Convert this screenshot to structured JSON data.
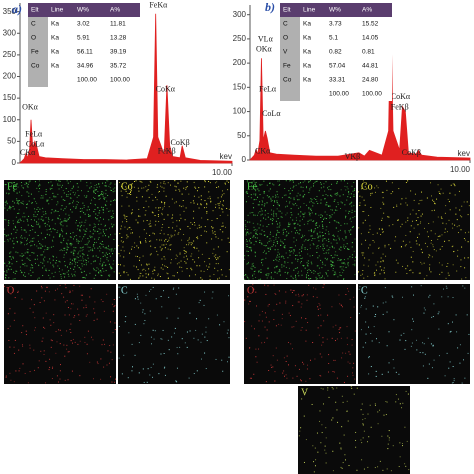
{
  "chart_data": [
    {
      "type": "line",
      "title": "a)",
      "x_label": "kev",
      "xlim": [
        0,
        10
      ],
      "ylim": [
        0,
        370
      ],
      "yticks": [
        0,
        50,
        100,
        150,
        200,
        250,
        300,
        350
      ],
      "xticks": [
        {
          "value": 10,
          "label": "10.00"
        }
      ],
      "series": [
        {
          "color": "#e02020",
          "x": [
            0,
            0.2,
            0.28,
            0.35,
            0.45,
            0.52,
            0.6,
            0.7,
            0.78,
            0.9,
            1.2,
            2,
            3,
            4,
            5,
            6,
            6.3,
            6.4,
            6.5,
            6.8,
            6.93,
            7.06,
            7.2,
            7.55,
            7.65,
            7.8,
            8.5,
            10
          ],
          "values": [
            0,
            10,
            22,
            12,
            30,
            100,
            35,
            50,
            40,
            15,
            12,
            10,
            8,
            8,
            7,
            10,
            60,
            345,
            60,
            20,
            180,
            40,
            15,
            12,
            40,
            12,
            6,
            4
          ]
        }
      ],
      "annotations": [
        {
          "text": "FeKα",
          "x": 6.1,
          "y": 364
        },
        {
          "text": "CoKα",
          "x": 6.4,
          "y": 169
        },
        {
          "text": "CoKβ",
          "x": 7.1,
          "y": 46
        },
        {
          "text": "FeKβ",
          "x": 6.5,
          "y": 26
        },
        {
          "text": "OKα",
          "x": 0.1,
          "y": 128
        },
        {
          "text": "FeLα",
          "x": 0.24,
          "y": 65
        },
        {
          "text": "CoLα",
          "x": 0.28,
          "y": 42
        },
        {
          "text": "CKα",
          "x": 0,
          "y": 23
        }
      ]
    },
    {
      "type": "line",
      "title": "b)",
      "x_label": "kev",
      "xlim": [
        0,
        10
      ],
      "ylim": [
        0,
        320
      ],
      "yticks": [
        0,
        50,
        100,
        150,
        200,
        250,
        300
      ],
      "xticks": [
        {
          "value": 10,
          "label": "10.00"
        }
      ],
      "series": [
        {
          "color": "#e02020",
          "x": [
            0,
            0.2,
            0.28,
            0.35,
            0.45,
            0.52,
            0.6,
            0.7,
            0.78,
            0.9,
            1.2,
            2,
            3,
            4,
            4.95,
            5.2,
            5.43,
            6,
            6.3,
            6.4,
            6.5,
            6.8,
            6.93,
            7.06,
            7.2,
            7.55,
            7.65,
            7.8,
            8.5,
            10
          ],
          "values": [
            0,
            10,
            22,
            12,
            40,
            210,
            40,
            60,
            45,
            15,
            12,
            10,
            8,
            8,
            15,
            8,
            20,
            10,
            60,
            310,
            60,
            20,
            110,
            100,
            15,
            12,
            20,
            10,
            6,
            4
          ]
        }
      ],
      "annotations": [
        {
          "text": "CKα",
          "x": 0.23,
          "y": 17
        },
        {
          "text": "VLα",
          "x": 0.36,
          "y": 248
        },
        {
          "text": "OKα",
          "x": 0.27,
          "y": 228
        },
        {
          "text": "FeLα",
          "x": 0.41,
          "y": 145
        },
        {
          "text": "CoLα",
          "x": 0.55,
          "y": 95
        },
        {
          "text": "VKβ",
          "x": 4.3,
          "y": 6
        },
        {
          "text": "CoKα",
          "x": 6.4,
          "y": 130
        },
        {
          "text": "FeKβ",
          "x": 6.4,
          "y": 108
        },
        {
          "text": "CoKβ",
          "x": 6.9,
          "y": 14
        }
      ]
    }
  ],
  "tables": [
    {
      "header": [
        "Elt",
        "Line",
        "W%",
        "A%"
      ],
      "rows": [
        [
          "C",
          "Ka",
          "3.02",
          "11.81"
        ],
        [
          "O",
          "Ka",
          "5.91",
          "13.28"
        ],
        [
          "Fe",
          "Ka",
          "56.11",
          "39.19"
        ],
        [
          "Co",
          "Ka",
          "34.96",
          "35.72"
        ],
        [
          "",
          "",
          "100.00",
          "100.00"
        ]
      ]
    },
    {
      "header": [
        "Elt",
        "Line",
        "W%",
        "A%"
      ],
      "rows": [
        [
          "C",
          "Ka",
          "3.73",
          "15.52"
        ],
        [
          "O",
          "Ka",
          "5.1",
          "14.05"
        ],
        [
          "V",
          "Ka",
          "0.82",
          "0.81"
        ],
        [
          "Fe",
          "Ka",
          "57.04",
          "44.81"
        ],
        [
          "Co",
          "Ka",
          "33.31",
          "24.80"
        ],
        [
          "",
          "",
          "100.00",
          "100.00"
        ]
      ]
    }
  ],
  "maps": [
    {
      "label": "Fe"
    },
    {
      "label": "Co"
    },
    {
      "label": "O"
    },
    {
      "label": "C"
    },
    {
      "label": "Fe"
    },
    {
      "label": "Co"
    },
    {
      "label": "O"
    },
    {
      "label": "C"
    },
    {
      "label": "V"
    }
  ]
}
